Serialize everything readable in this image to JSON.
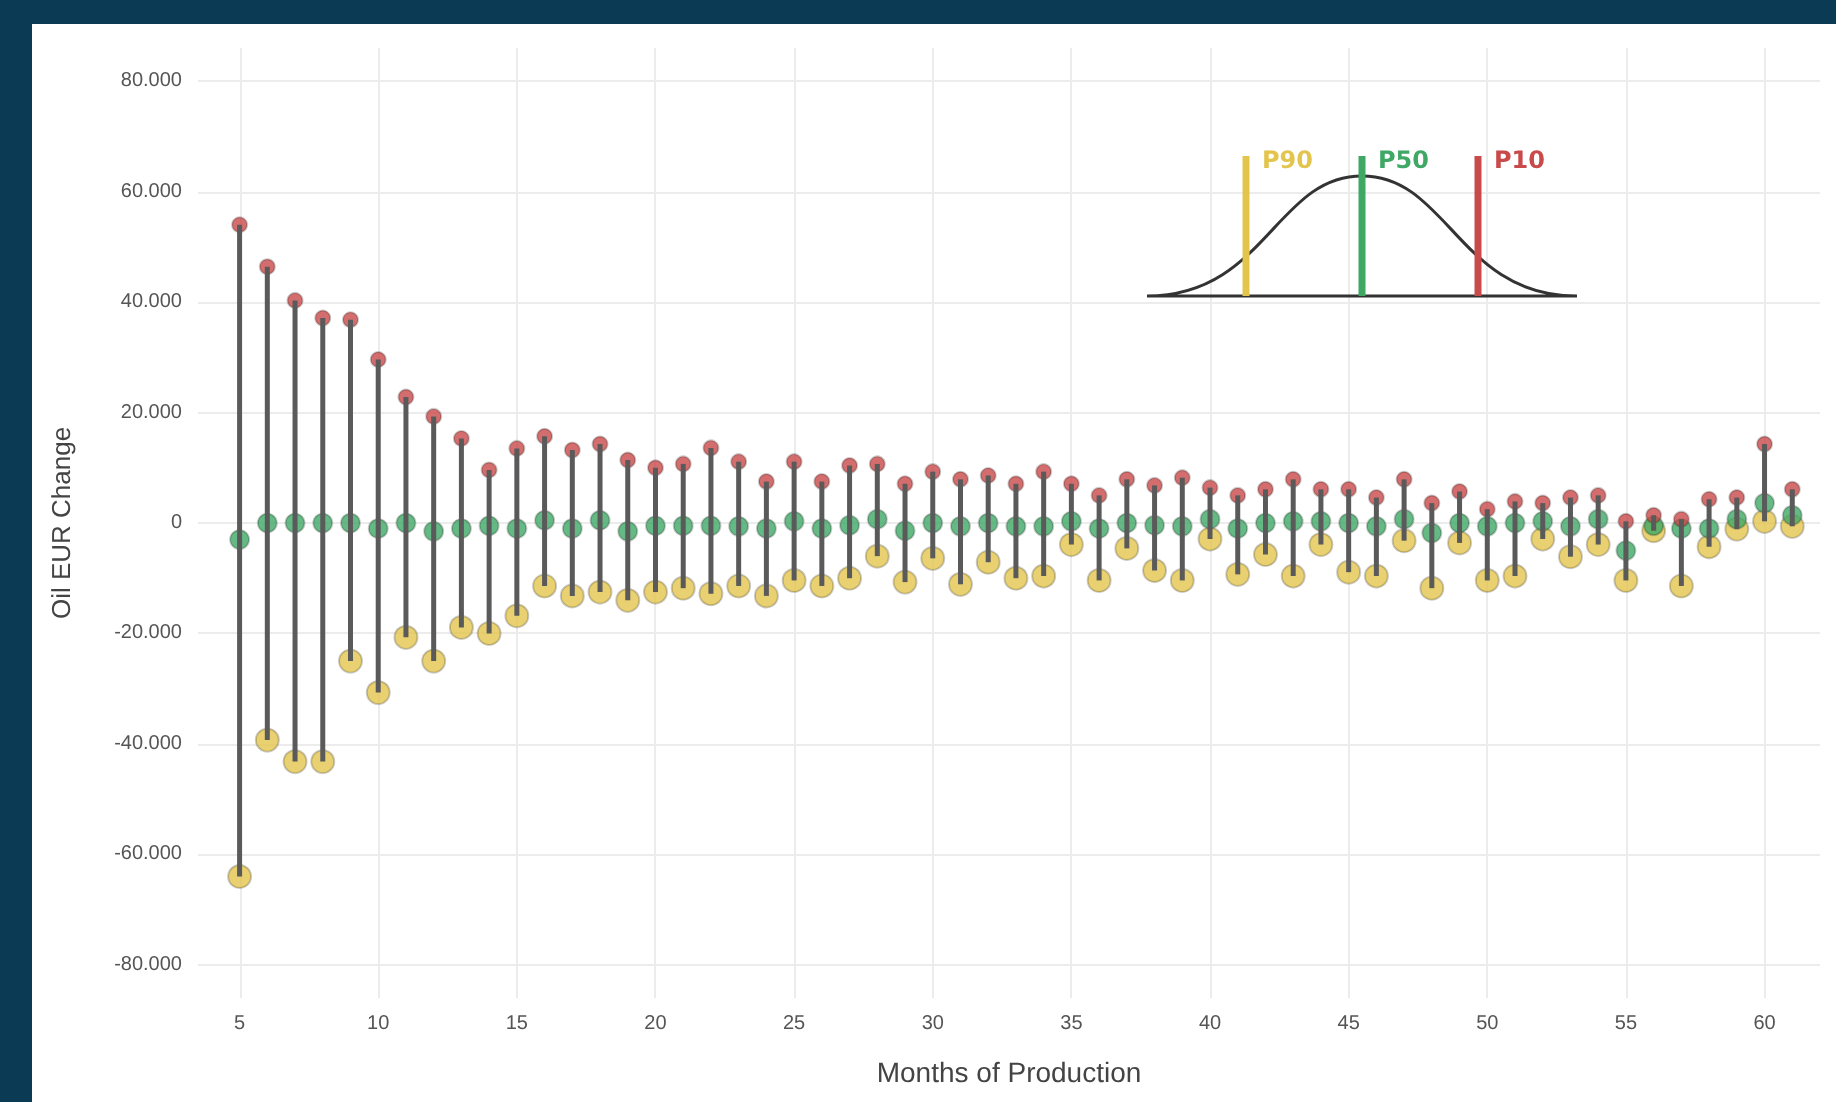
{
  "chart_data": {
    "type": "scatter",
    "xlabel": "Months of Production",
    "ylabel": "Oil EUR Change",
    "x": [
      5,
      6,
      7,
      8,
      9,
      10,
      11,
      12,
      13,
      14,
      15,
      16,
      17,
      18,
      19,
      20,
      21,
      22,
      23,
      24,
      25,
      26,
      27,
      28,
      29,
      30,
      31,
      32,
      33,
      34,
      35,
      36,
      37,
      38,
      39,
      40,
      41,
      42,
      43,
      44,
      45,
      46,
      47,
      48,
      49,
      50,
      51,
      52,
      53,
      54,
      55,
      56,
      57,
      58,
      59,
      60,
      61
    ],
    "series": [
      {
        "name": "P90",
        "color": "#e3c54e",
        "values": [
          -64000,
          -39300,
          -43200,
          -43200,
          -25000,
          -30700,
          -20700,
          -25000,
          -18900,
          -20000,
          -16800,
          -11400,
          -13200,
          -12500,
          -14000,
          -12500,
          -11800,
          -12800,
          -11400,
          -13200,
          -10400,
          -11400,
          -10000,
          -6000,
          -10700,
          -6400,
          -11100,
          -7100,
          -10000,
          -9600,
          -3900,
          -10400,
          -4600,
          -8600,
          -10400,
          -2900,
          -9300,
          -5700,
          -9600,
          -3900,
          -8900,
          -9600,
          -3200,
          -11800,
          -3600,
          -10400,
          -9600,
          -2900,
          -6100,
          -3900,
          -10400,
          -1400,
          -11400,
          -4300,
          -1100,
          300,
          -600
        ]
      },
      {
        "name": "P50",
        "color": "#3fa865",
        "values": [
          -3000,
          0,
          0,
          0,
          0,
          -1000,
          0,
          -1500,
          -1000,
          -500,
          -1000,
          500,
          -1000,
          500,
          -1500,
          -500,
          -500,
          -500,
          -600,
          -1000,
          300,
          -1000,
          -400,
          700,
          -1400,
          0,
          -600,
          0,
          -600,
          -600,
          300,
          -1000,
          0,
          -400,
          -600,
          700,
          -1000,
          0,
          300,
          300,
          0,
          -600,
          700,
          -1800,
          0,
          -600,
          0,
          300,
          -600,
          700,
          -5000,
          -500,
          -1000,
          -1000,
          700,
          3600,
          1400
        ],
        "errors": [
          [
            -64000,
            54000
          ],
          [
            -39300,
            46400
          ],
          [
            -43200,
            40300
          ],
          [
            -43200,
            37100
          ],
          [
            -25000,
            36800
          ],
          [
            -30700,
            29600
          ],
          [
            -20700,
            22800
          ],
          [
            -25000,
            19300
          ],
          [
            -18900,
            15300
          ],
          [
            -20000,
            9600
          ],
          [
            -16800,
            13500
          ],
          [
            -11400,
            15700
          ],
          [
            -13200,
            13200
          ],
          [
            -12500,
            14300
          ],
          [
            -14000,
            11400
          ],
          [
            -12500,
            10000
          ],
          [
            -11800,
            10700
          ],
          [
            -12800,
            13600
          ],
          [
            -11400,
            11100
          ],
          [
            -13200,
            7500
          ],
          [
            -10400,
            11100
          ],
          [
            -11400,
            7500
          ],
          [
            -10000,
            10400
          ],
          [
            -6000,
            10700
          ],
          [
            -10700,
            7100
          ],
          [
            -6400,
            9300
          ],
          [
            -11100,
            7900
          ],
          [
            -7100,
            8600
          ],
          [
            -10000,
            7100
          ],
          [
            -9600,
            9300
          ],
          [
            -3900,
            7100
          ],
          [
            -10400,
            5000
          ],
          [
            -4600,
            7900
          ],
          [
            -8600,
            6800
          ],
          [
            -10400,
            8200
          ],
          [
            -2900,
            6400
          ],
          [
            -9300,
            5000
          ],
          [
            -5700,
            6100
          ],
          [
            -9600,
            7900
          ],
          [
            -3900,
            6100
          ],
          [
            -8900,
            6100
          ],
          [
            -9600,
            4600
          ],
          [
            -3200,
            7900
          ],
          [
            -11800,
            3600
          ],
          [
            -3600,
            5700
          ],
          [
            -10400,
            2500
          ],
          [
            -9600,
            3900
          ],
          [
            -2900,
            3600
          ],
          [
            -6100,
            4600
          ],
          [
            -3900,
            5000
          ],
          [
            -10400,
            300
          ],
          [
            -1400,
            1400
          ],
          [
            -11400,
            700
          ],
          [
            -4300,
            4300
          ],
          [
            -1100,
            4600
          ],
          [
            300,
            14300
          ],
          [
            -600,
            6100
          ]
        ]
      },
      {
        "name": "P10",
        "color": "#c94a4a",
        "values": [
          54000,
          46400,
          40300,
          37100,
          36800,
          29600,
          22800,
          19300,
          15300,
          9600,
          13500,
          15700,
          13200,
          14300,
          11400,
          10000,
          10700,
          13600,
          11100,
          7500,
          11100,
          7500,
          10400,
          10700,
          7100,
          9300,
          7900,
          8600,
          7100,
          9300,
          7100,
          5000,
          7900,
          6800,
          8200,
          6400,
          5000,
          6100,
          7900,
          6100,
          6100,
          4600,
          7900,
          3600,
          5700,
          2500,
          3900,
          3600,
          4600,
          5000,
          300,
          1400,
          700,
          4300,
          4600,
          14300,
          6100
        ]
      }
    ],
    "xlim": [
      3.5,
      62
    ],
    "xticks": [
      5,
      10,
      15,
      20,
      25,
      30,
      35,
      40,
      45,
      50,
      55,
      60
    ],
    "ylim": [
      -86000,
      86000
    ],
    "yticks": [
      {
        "value": -80000,
        "label": "-80.000"
      },
      {
        "value": -60000,
        "label": "-60.000"
      },
      {
        "value": -40000,
        "label": "-40.000"
      },
      {
        "value": -20000,
        "label": "-20.000"
      },
      {
        "value": 0,
        "label": "0"
      },
      {
        "value": 20000,
        "label": "20.000"
      },
      {
        "value": 40000,
        "label": "40.000"
      },
      {
        "value": 60000,
        "label": "60.000"
      },
      {
        "value": 80000,
        "label": "80.000"
      }
    ],
    "grid": true,
    "legend": "top right",
    "marker": "circle"
  }
}
